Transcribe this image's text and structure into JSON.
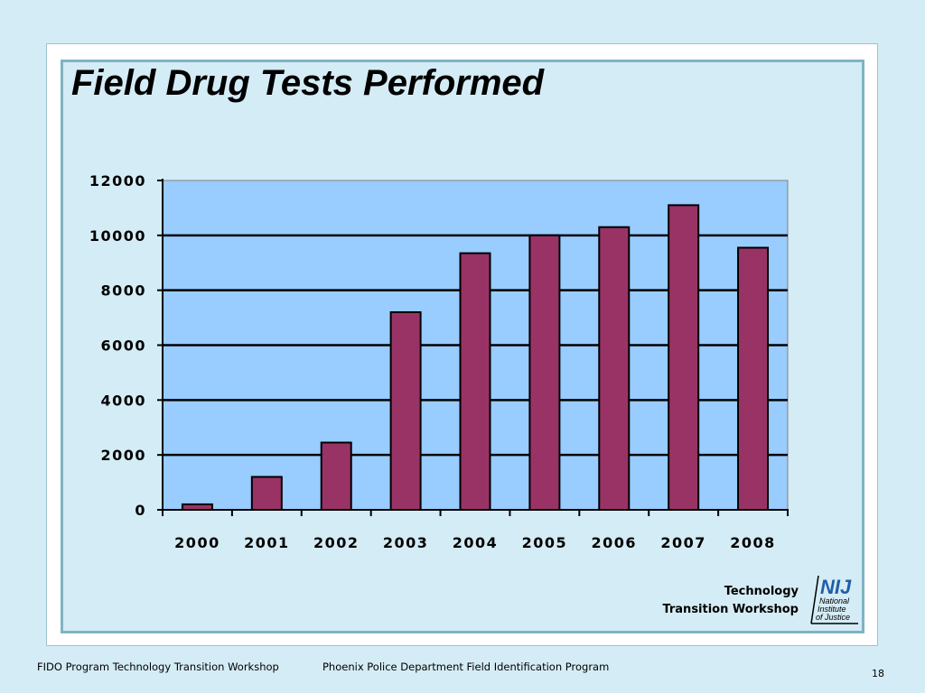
{
  "slide": {
    "title": "Field Drug Tests Performed",
    "logo_line1": "Technology",
    "logo_line2": "Transition Workshop",
    "logo_brand": "NIJ",
    "logo_sub": [
      "National",
      "Institute",
      "of Justice"
    ],
    "footer_left": "FIDO Program Technology Transition Workshop",
    "footer_center": "Phoenix Police Department Field Identification Program",
    "page_number": "18"
  },
  "colors": {
    "background": "#d4ecf5",
    "plot_area": "#99ccff",
    "bar_fill": "#993366",
    "gridline": "#000000",
    "logo_blue": "#1f5fa8"
  },
  "chart_data": {
    "type": "bar",
    "categories": [
      "2000",
      "2001",
      "2002",
      "2003",
      "2004",
      "2005",
      "2006",
      "2007",
      "2008"
    ],
    "values": [
      200,
      1200,
      2450,
      7200,
      9350,
      10000,
      10300,
      11100,
      9550
    ],
    "title": "",
    "xlabel": "",
    "ylabel": "",
    "ylim": [
      0,
      12000
    ],
    "yticks": [
      "0",
      "2000",
      "4000",
      "6000",
      "8000",
      "10000",
      "12000"
    ],
    "grid": true,
    "legend": "none"
  }
}
